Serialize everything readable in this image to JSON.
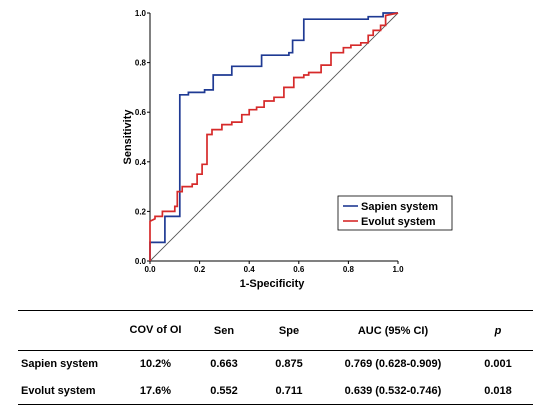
{
  "chart_data": {
    "type": "line",
    "xlabel": "1-Specificity",
    "ylabel": "Sensitivity",
    "xlim": [
      0,
      1
    ],
    "ylim": [
      0,
      1
    ],
    "x_ticks": [
      "0.0",
      "0.2",
      "0.4",
      "0.6",
      "0.8",
      "1.0"
    ],
    "y_ticks": [
      "0.0",
      "0.2",
      "0.4",
      "0.6",
      "0.8",
      "1.0"
    ],
    "grid": false,
    "legend": "bottom-right",
    "reference_line": true,
    "series": [
      {
        "name": "Sapien system",
        "color": "#1f3a93",
        "points": [
          [
            0,
            0
          ],
          [
            0,
            0.075
          ],
          [
            0.06,
            0.075
          ],
          [
            0.06,
            0.18
          ],
          [
            0.12,
            0.18
          ],
          [
            0.12,
            0.67
          ],
          [
            0.155,
            0.67
          ],
          [
            0.155,
            0.68
          ],
          [
            0.22,
            0.68
          ],
          [
            0.22,
            0.69
          ],
          [
            0.255,
            0.69
          ],
          [
            0.255,
            0.75
          ],
          [
            0.33,
            0.75
          ],
          [
            0.33,
            0.785
          ],
          [
            0.45,
            0.785
          ],
          [
            0.45,
            0.83
          ],
          [
            0.56,
            0.83
          ],
          [
            0.56,
            0.84
          ],
          [
            0.575,
            0.84
          ],
          [
            0.575,
            0.89
          ],
          [
            0.62,
            0.89
          ],
          [
            0.62,
            0.975
          ],
          [
            0.88,
            0.975
          ],
          [
            0.88,
            0.985
          ],
          [
            0.94,
            0.985
          ],
          [
            0.94,
            1.0
          ],
          [
            1.0,
            1.0
          ]
        ]
      },
      {
        "name": "Evolut system",
        "color": "#d62a2a",
        "points": [
          [
            0,
            0
          ],
          [
            0,
            0.16
          ],
          [
            0.02,
            0.17
          ],
          [
            0.02,
            0.18
          ],
          [
            0.05,
            0.18
          ],
          [
            0.05,
            0.2
          ],
          [
            0.1,
            0.2
          ],
          [
            0.1,
            0.22
          ],
          [
            0.11,
            0.22
          ],
          [
            0.11,
            0.28
          ],
          [
            0.13,
            0.28
          ],
          [
            0.13,
            0.3
          ],
          [
            0.17,
            0.3
          ],
          [
            0.17,
            0.31
          ],
          [
            0.19,
            0.31
          ],
          [
            0.19,
            0.35
          ],
          [
            0.21,
            0.35
          ],
          [
            0.21,
            0.39
          ],
          [
            0.23,
            0.39
          ],
          [
            0.23,
            0.51
          ],
          [
            0.25,
            0.51
          ],
          [
            0.25,
            0.53
          ],
          [
            0.29,
            0.53
          ],
          [
            0.29,
            0.55
          ],
          [
            0.33,
            0.55
          ],
          [
            0.33,
            0.56
          ],
          [
            0.37,
            0.56
          ],
          [
            0.37,
            0.59
          ],
          [
            0.4,
            0.59
          ],
          [
            0.4,
            0.61
          ],
          [
            0.43,
            0.61
          ],
          [
            0.43,
            0.62
          ],
          [
            0.46,
            0.62
          ],
          [
            0.46,
            0.645
          ],
          [
            0.5,
            0.645
          ],
          [
            0.5,
            0.66
          ],
          [
            0.54,
            0.66
          ],
          [
            0.54,
            0.7
          ],
          [
            0.58,
            0.7
          ],
          [
            0.58,
            0.74
          ],
          [
            0.62,
            0.74
          ],
          [
            0.62,
            0.75
          ],
          [
            0.64,
            0.75
          ],
          [
            0.64,
            0.76
          ],
          [
            0.69,
            0.76
          ],
          [
            0.69,
            0.79
          ],
          [
            0.73,
            0.79
          ],
          [
            0.73,
            0.84
          ],
          [
            0.78,
            0.84
          ],
          [
            0.78,
            0.86
          ],
          [
            0.81,
            0.86
          ],
          [
            0.81,
            0.87
          ],
          [
            0.85,
            0.87
          ],
          [
            0.85,
            0.88
          ],
          [
            0.88,
            0.88
          ],
          [
            0.88,
            0.91
          ],
          [
            0.9,
            0.91
          ],
          [
            0.9,
            0.93
          ],
          [
            0.93,
            0.93
          ],
          [
            0.93,
            0.95
          ],
          [
            0.95,
            0.95
          ],
          [
            0.95,
            0.99
          ],
          [
            1.0,
            1.0
          ]
        ]
      }
    ]
  },
  "table": {
    "headers": [
      "",
      "COV of OI",
      "Sen",
      "Spe",
      "AUC (95% CI)",
      "p"
    ],
    "rows": [
      {
        "name": "Sapien system",
        "cov": "10.2%",
        "sen": "0.663",
        "spe": "0.875",
        "auc": "0.769 (0.628-0.909)",
        "p": "0.001"
      },
      {
        "name": "Evolut system",
        "cov": "17.6%",
        "sen": "0.552",
        "spe": "0.711",
        "auc": "0.639 (0.532-0.746)",
        "p": "0.018"
      }
    ]
  }
}
